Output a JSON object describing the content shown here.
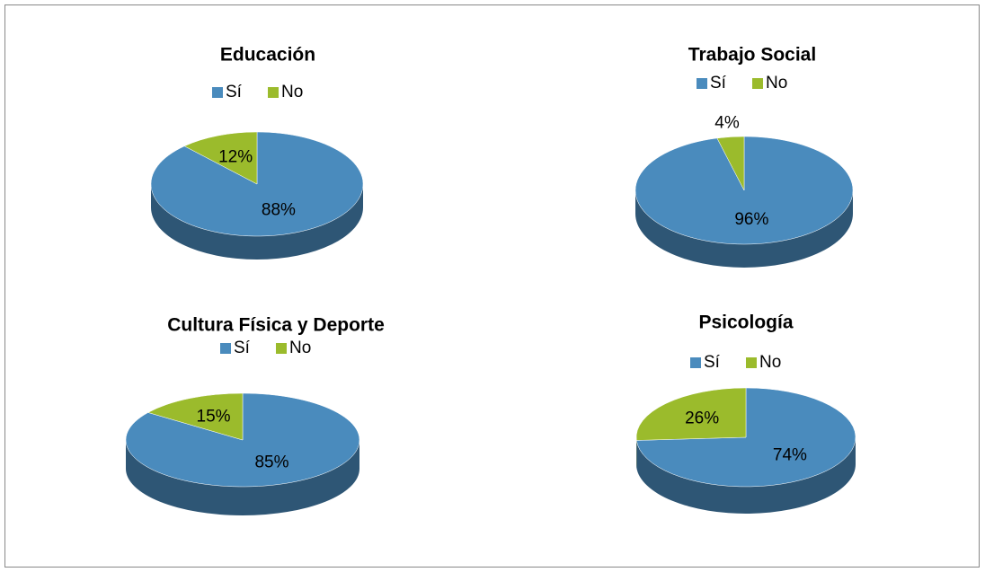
{
  "chart_data": [
    {
      "type": "pie",
      "title": "Educación",
      "categories": [
        "Sí",
        "No"
      ],
      "values": [
        88,
        12
      ],
      "value_labels": [
        "88%",
        "12%"
      ],
      "colors": [
        "#4a8bbd",
        "#9bbb2c"
      ]
    },
    {
      "type": "pie",
      "title": "Trabajo Social",
      "categories": [
        "Sí",
        "No"
      ],
      "values": [
        96,
        4
      ],
      "value_labels": [
        "96%",
        "4%"
      ],
      "colors": [
        "#4a8bbd",
        "#9bbb2c"
      ]
    },
    {
      "type": "pie",
      "title": "Cultura Física y Deporte",
      "categories": [
        "Sí",
        "No"
      ],
      "values": [
        85,
        15
      ],
      "value_labels": [
        "85%",
        "15%"
      ],
      "colors": [
        "#4a8bbd",
        "#9bbb2c"
      ]
    },
    {
      "type": "pie",
      "title": "Psicología",
      "categories": [
        "Sí",
        "No"
      ],
      "values": [
        74,
        26
      ],
      "value_labels": [
        "74%",
        "26%"
      ],
      "colors": [
        "#4a8bbd",
        "#9bbb2c"
      ]
    }
  ]
}
